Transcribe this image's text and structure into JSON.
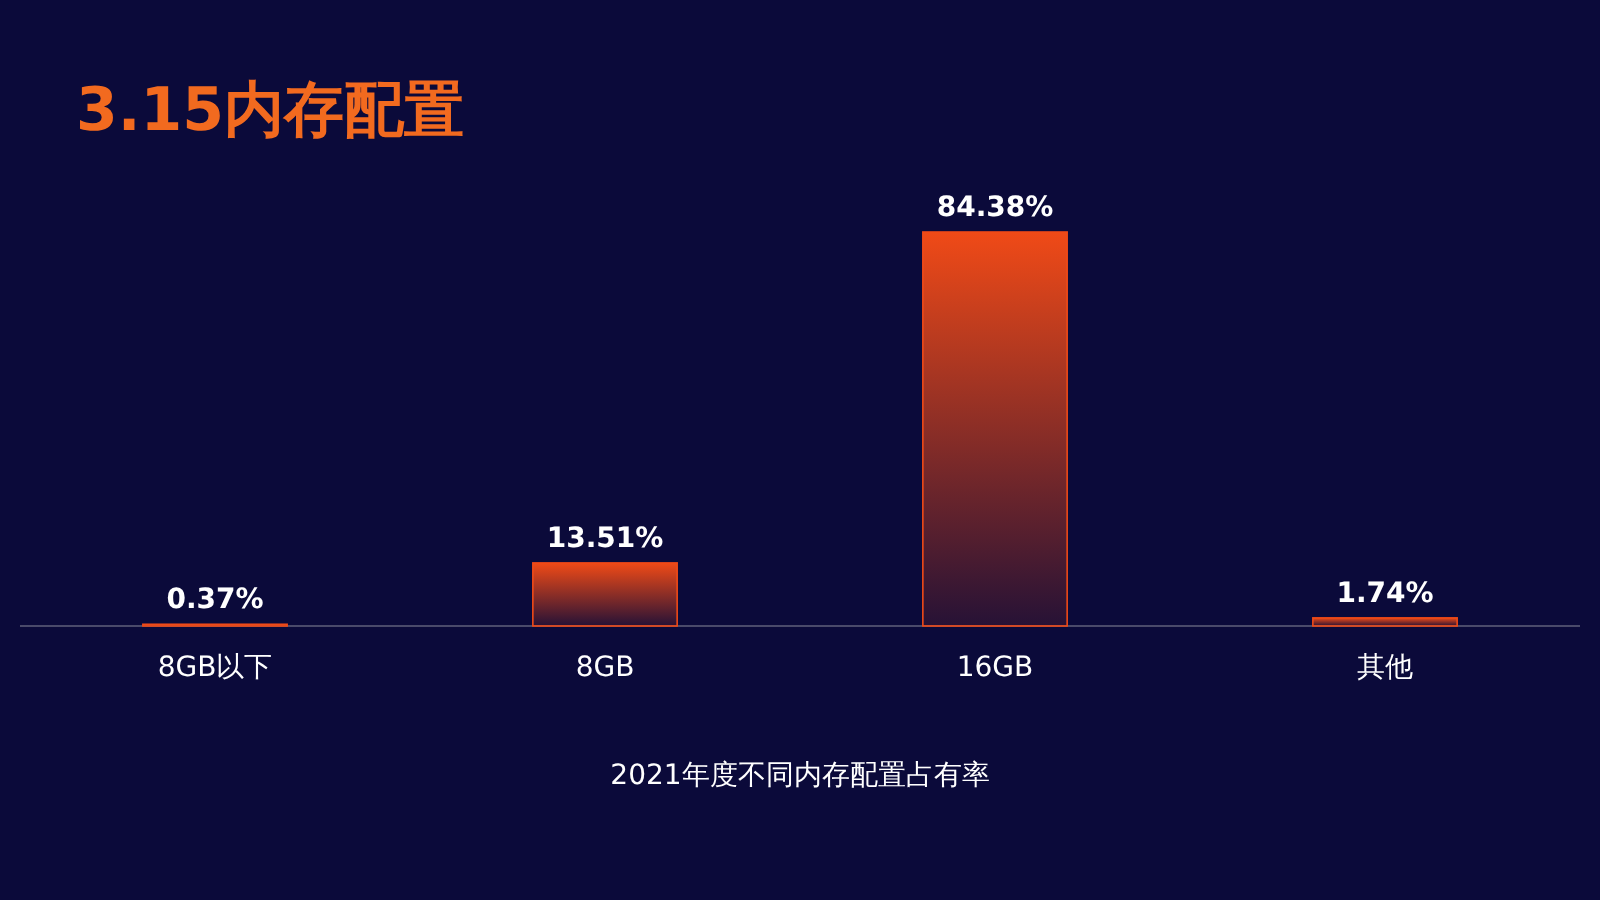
{
  "chart_data": {
    "type": "bar",
    "title": "3.15内存配置",
    "xlabel": "2021年度不同内存配置占有率",
    "categories": [
      "8GB以下",
      "8GB",
      "16GB",
      "其他"
    ],
    "values": [
      0.37,
      13.51,
      84.38,
      1.74
    ],
    "value_labels": [
      "0.37%",
      "13.51%",
      "84.38%",
      "1.74%"
    ],
    "color": "#f04a17"
  }
}
